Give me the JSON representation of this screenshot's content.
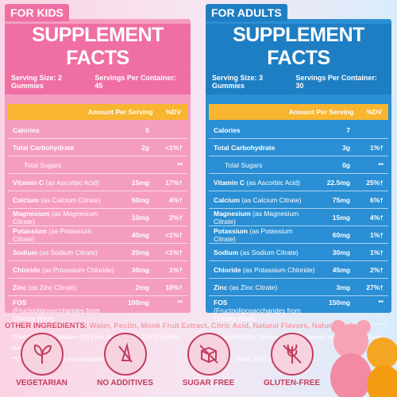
{
  "panels": [
    {
      "tag": "FOR KIDS",
      "title": "SUPPLEMENT FACTS",
      "serving_size": "Serving Size: 2 Gummies",
      "servings_per_container": "Servings Per Container: 45",
      "amount_header": "Amount Per Serving",
      "dv_header": "%DV",
      "rows": [
        {
          "name": "Calories",
          "amount": "5"
        },
        {
          "name": "Total Carbohydrate",
          "amount": "2g",
          "dv": "<1%†"
        },
        {
          "name": "Total Sugars",
          "dv": "**"
        },
        {
          "name": "Vitamin C",
          "source": "(as Ascorbic Acid)",
          "amount": "15mg",
          "dv": "17%†"
        },
        {
          "name": "Calcium",
          "source": "(as Calcium Citrate)",
          "amount": "50mg",
          "dv": "4%†"
        },
        {
          "name": "Magnesium",
          "source": "(as Magnesium Citrate)",
          "amount": "10mg",
          "dv": "2%†"
        },
        {
          "name": "Potassium",
          "source": "(as Potassium Citrate)",
          "amount": "40mg",
          "dv": "<1%†"
        },
        {
          "name": "Sodium",
          "source": "(as Sodium Citrate)",
          "amount": "20mg",
          "dv": "<1%†"
        },
        {
          "name": "Chloride",
          "source": "(as Potassium Chloride)",
          "amount": "30mg",
          "dv": "1%†"
        },
        {
          "name": "Zinc",
          "source": "(as Zinc Citrate)",
          "amount": "2mg",
          "dv": "18%†"
        },
        {
          "name": "FOS",
          "source": "(Fructooligosaccharides from Chicory Root)",
          "amount": "100mg",
          "dv": "**"
        }
      ],
      "footnotes": [
        "†Percent Daily Values (DV) are based on a 2,000 calorie diet.",
        "**Daily Value (DV) not established."
      ]
    },
    {
      "tag": "FOR ADULTS",
      "title": "SUPPLEMENT FACTS",
      "serving_size": "Serving Size: 3 Gummies",
      "servings_per_container": "Servings Per Container: 30",
      "amount_header": "Amount Per Serving",
      "dv_header": "%DV",
      "rows": [
        {
          "name": "Calories",
          "amount": "7"
        },
        {
          "name": "Total Carbohydrate",
          "amount": "3g",
          "dv": "1%†"
        },
        {
          "name": "Total Sugars",
          "amount": "0g",
          "dv": "**"
        },
        {
          "name": "Vitamin C",
          "source": "(as Ascorbic Acid)",
          "amount": "22.5mg",
          "dv": "25%†"
        },
        {
          "name": "Calcium",
          "source": "(as Calcium Citrate)",
          "amount": "75mg",
          "dv": "6%†"
        },
        {
          "name": "Magnesium",
          "source": "(as Magnesium Citrate)",
          "amount": "15mg",
          "dv": "4%†"
        },
        {
          "name": "Potassium",
          "source": "(as Potassium Citrate)",
          "amount": "60mg",
          "dv": "1%†"
        },
        {
          "name": "Sodium",
          "source": "(as Sodium Citrate)",
          "amount": "30mg",
          "dv": "1%†"
        },
        {
          "name": "Chloride",
          "source": "(as Potassium Chloride)",
          "amount": "45mg",
          "dv": "2%†"
        },
        {
          "name": "Zinc",
          "source": "(as Zinc Citrate)",
          "amount": "3mg",
          "dv": "27%†"
        },
        {
          "name": "FOS",
          "source": "(Fructooligosaccharides from Chicory Root)",
          "amount": "150mg",
          "dv": "**"
        }
      ],
      "footnotes": [
        "†Percent Daily Values (DV) are based on a 2,000 calorie diet.",
        "**Daily Value (DV) not established."
      ]
    }
  ],
  "other_ingredients": {
    "label": "OTHER INGREDIENTS:",
    "text": "Water, Pectin, Monk Fruit Extract, Citric Acid, Natural Flavors, Natural Colors."
  },
  "badges": [
    "VEGETARIAN",
    "NO ADDITIVES",
    "SUGAR FREE",
    "GLUTEN-FREE"
  ]
}
